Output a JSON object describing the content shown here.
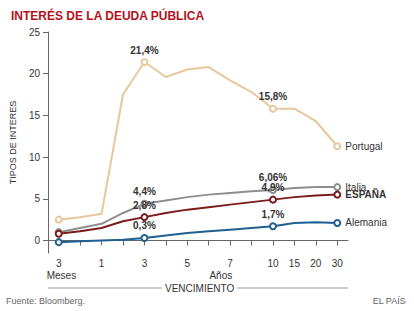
{
  "chart_data": {
    "type": "line",
    "title": "INTERÉS DE LA DEUDA PÚBLICA",
    "y_label": "TIPOS DE INTERES",
    "x_label": "VENCIMIENTO",
    "x_group_labels": [
      "Meses",
      "Años"
    ],
    "source": "Fuente: Bloomberg.",
    "credit": "EL PAÍS",
    "categories": [
      "3",
      null,
      "1",
      null,
      "3",
      null,
      "5",
      null,
      "7",
      null,
      "10",
      "15",
      "20",
      "30"
    ],
    "series": [
      {
        "name": "Portugal",
        "color": "#e6c89c",
        "values": [
          2.5,
          2.8,
          3.2,
          17.5,
          21.4,
          19.6,
          20.5,
          20.8,
          19.2,
          17.8,
          15.8,
          15.8,
          14.3,
          11.3
        ],
        "value_labels": [
          null,
          null,
          null,
          null,
          "21,4%",
          null,
          null,
          null,
          null,
          null,
          "15,8%",
          null,
          null,
          null
        ]
      },
      {
        "name": "Italia",
        "color": "#8e8e8e",
        "values": [
          1.0,
          1.5,
          2.0,
          3.3,
          4.4,
          4.8,
          5.2,
          5.5,
          5.7,
          5.9,
          6.06,
          6.3,
          6.4,
          6.4
        ],
        "value_labels": [
          null,
          null,
          null,
          null,
          "4,4%",
          null,
          null,
          null,
          null,
          null,
          "6,06%",
          null,
          null,
          null
        ]
      },
      {
        "name": "ESPAÑA",
        "color": "#7a1c1c",
        "values": [
          0.8,
          1.1,
          1.5,
          2.3,
          2.8,
          3.3,
          3.7,
          4.0,
          4.3,
          4.6,
          4.9,
          5.2,
          5.4,
          5.5
        ],
        "value_labels": [
          null,
          null,
          null,
          null,
          "2,8%",
          null,
          null,
          null,
          null,
          null,
          "4,9%",
          null,
          null,
          null
        ]
      },
      {
        "name": "Alemania",
        "color": "#1f5f92",
        "values": [
          -0.2,
          -0.1,
          0.0,
          0.1,
          0.3,
          0.6,
          0.9,
          1.1,
          1.3,
          1.5,
          1.7,
          2.1,
          2.2,
          2.1
        ],
        "value_labels": [
          null,
          null,
          null,
          null,
          "0,3%",
          null,
          null,
          null,
          null,
          null,
          "1,7%",
          null,
          null,
          null
        ]
      }
    ],
    "ylim": [
      -1.5,
      25
    ],
    "yticks": [
      0,
      5,
      10,
      15,
      20,
      25
    ],
    "grid": false,
    "marker": "circle"
  }
}
